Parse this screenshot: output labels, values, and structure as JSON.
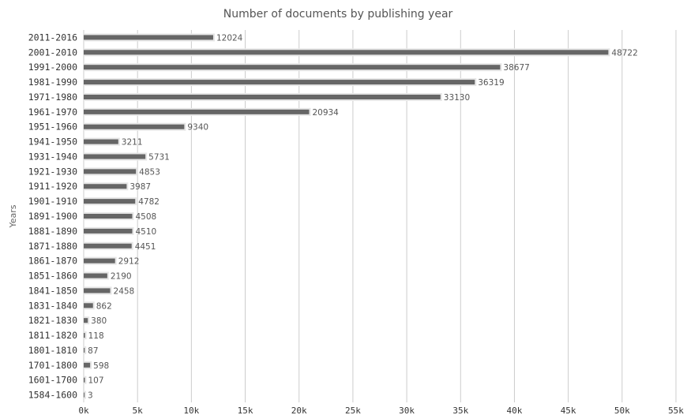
{
  "chart_data": {
    "type": "bar",
    "orientation": "horizontal",
    "title": "Number of documents by publishing year",
    "ylabel": "Years",
    "xlabel": "",
    "xlim": [
      0,
      55000
    ],
    "x_ticks": [
      0,
      5000,
      10000,
      15000,
      20000,
      25000,
      30000,
      35000,
      40000,
      45000,
      50000,
      55000
    ],
    "x_tick_labels": [
      "0k",
      "5k",
      "10k",
      "15k",
      "20k",
      "25k",
      "30k",
      "35k",
      "40k",
      "45k",
      "50k",
      "55k"
    ],
    "grid": true,
    "legend": "none",
    "bar_color": "#666666",
    "categories": [
      "2011-2016",
      "2001-2010",
      "1991-2000",
      "1981-1990",
      "1971-1980",
      "1961-1970",
      "1951-1960",
      "1941-1950",
      "1931-1940",
      "1921-1930",
      "1911-1920",
      "1901-1910",
      "1891-1900",
      "1881-1890",
      "1871-1880",
      "1861-1870",
      "1851-1860",
      "1841-1850",
      "1831-1840",
      "1821-1830",
      "1811-1820",
      "1801-1810",
      "1701-1800",
      "1601-1700",
      "1584-1600"
    ],
    "values": [
      12024,
      48722,
      38677,
      36319,
      33130,
      20934,
      9340,
      3211,
      5731,
      4853,
      3987,
      4782,
      4508,
      4510,
      4451,
      2912,
      2190,
      2458,
      862,
      380,
      118,
      87,
      598,
      107,
      3
    ]
  }
}
